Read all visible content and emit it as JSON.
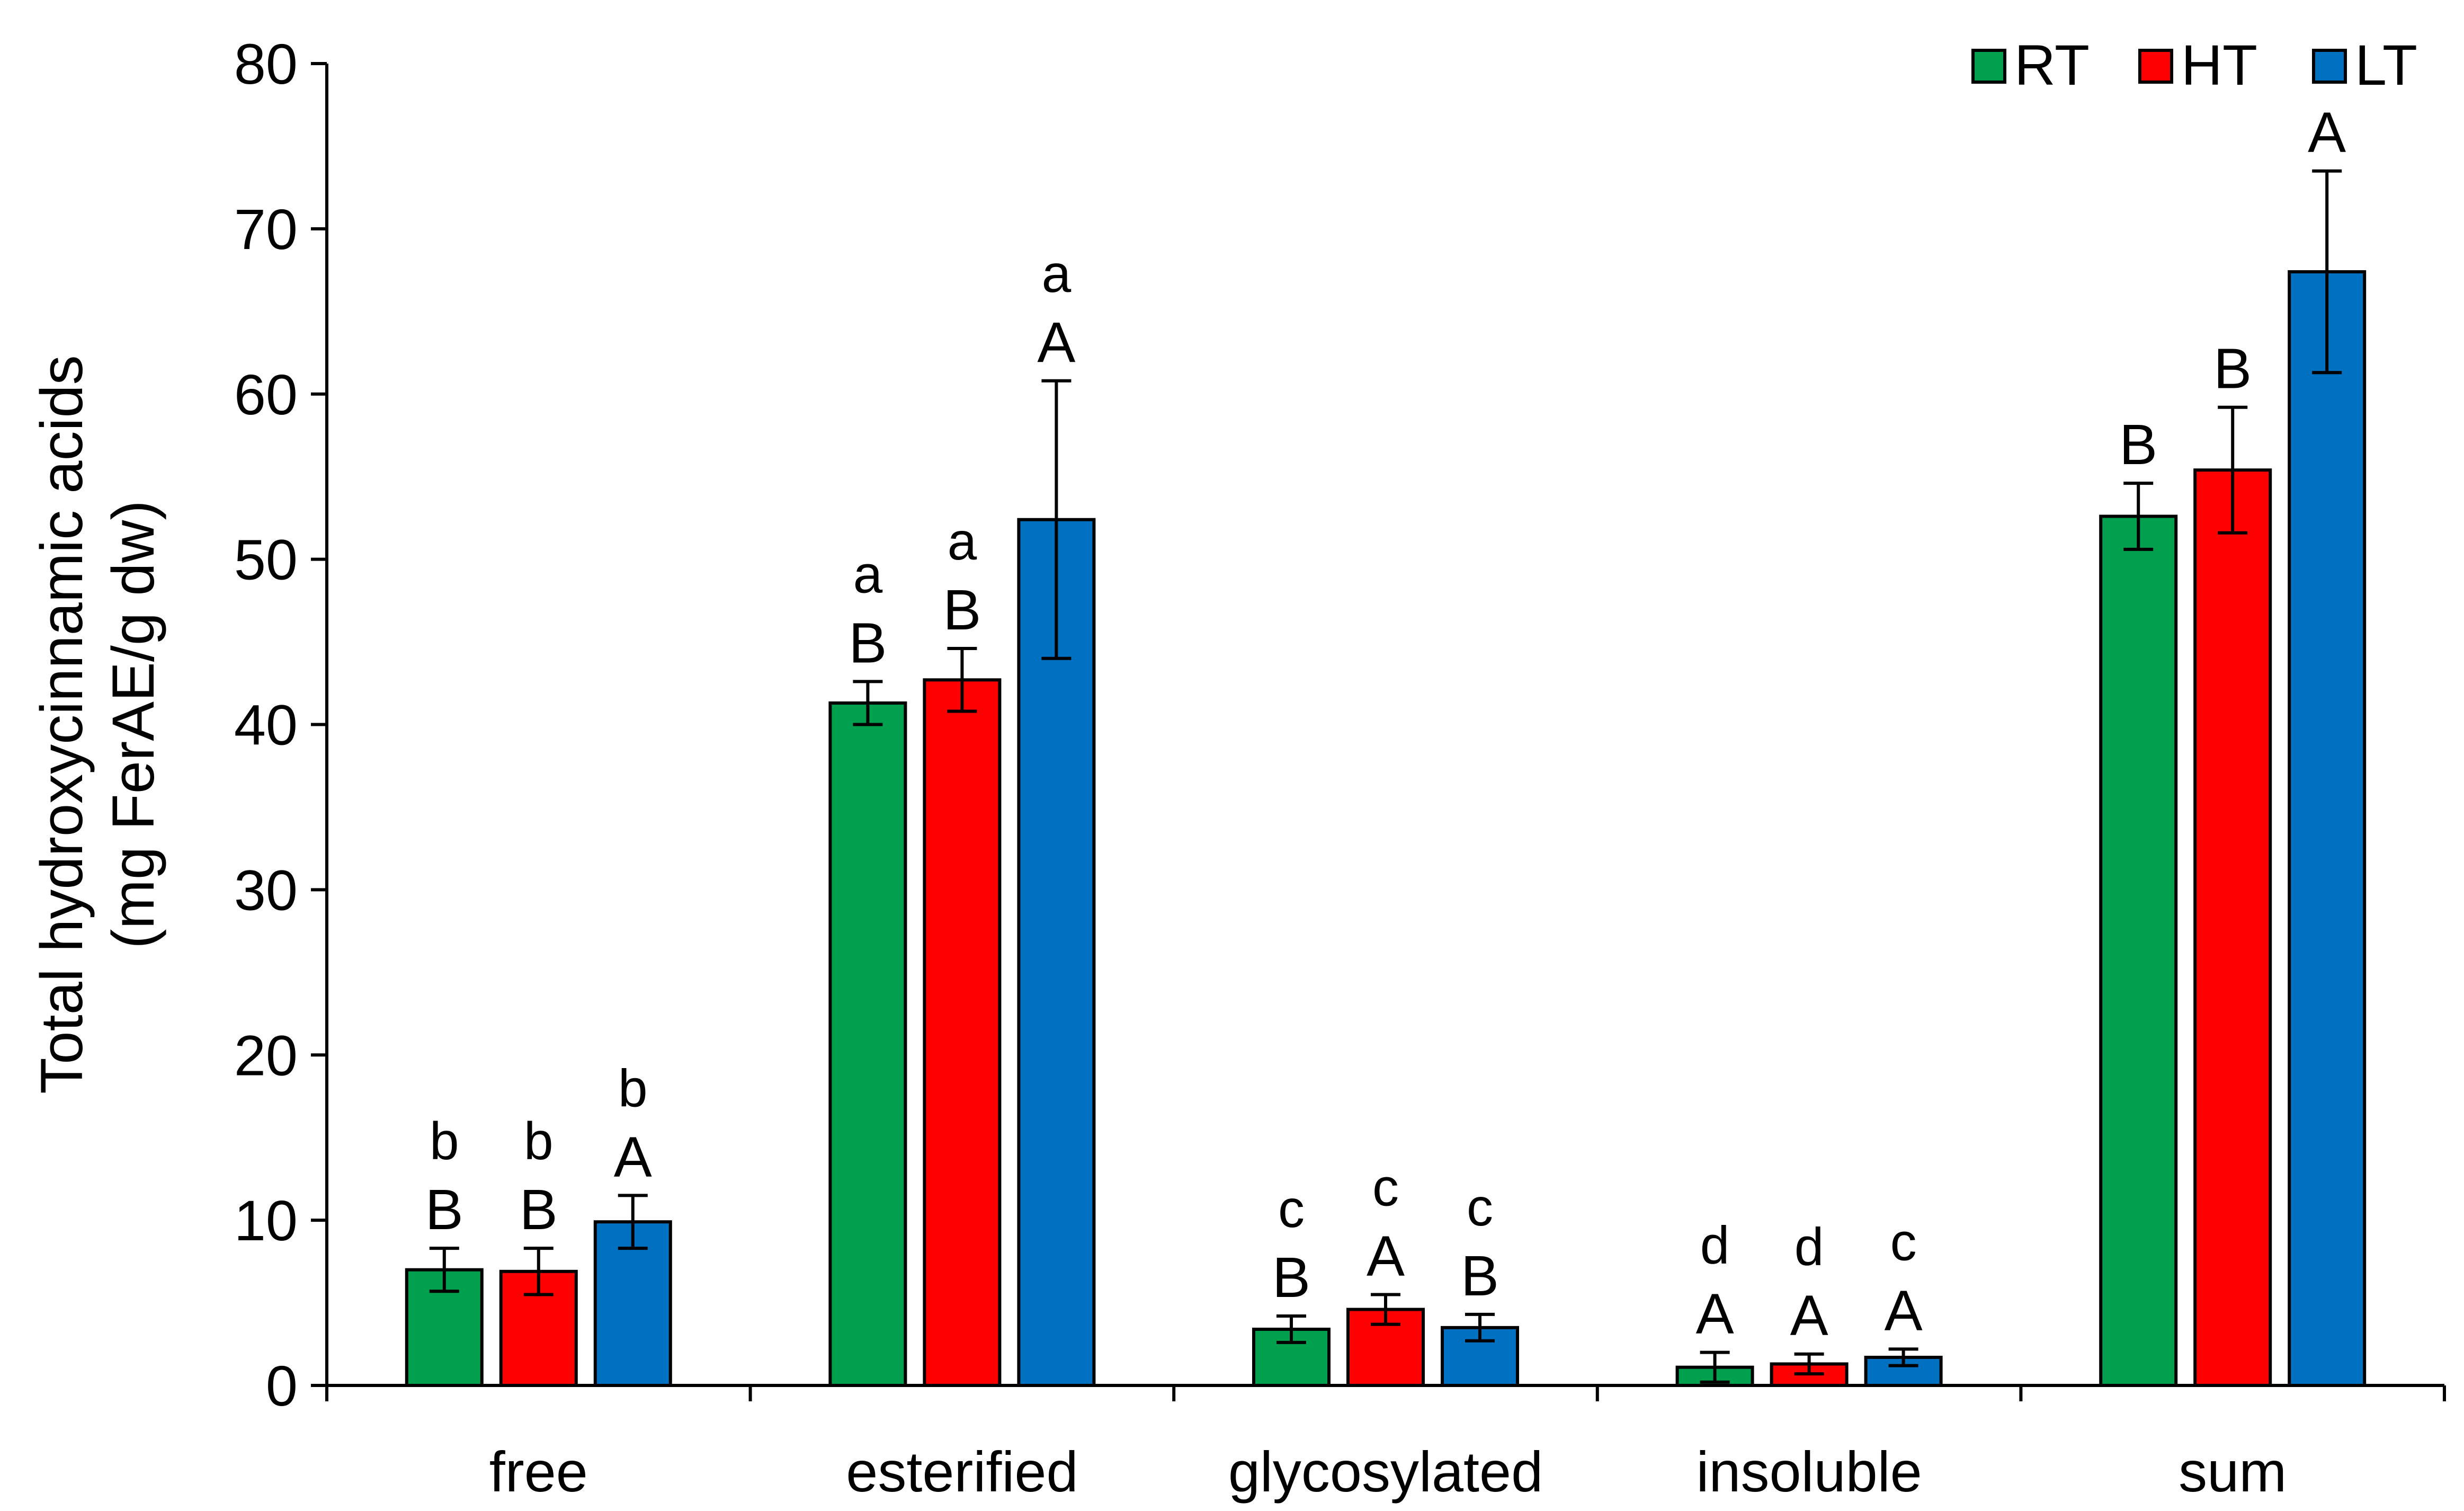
{
  "chart_data": {
    "type": "bar",
    "title": "",
    "ylabel_lines": [
      "Total hydroxycinnamic acids",
      "(mg FerAE/g dw)"
    ],
    "xlabel": "",
    "ylim": [
      0,
      80
    ],
    "yticks": [
      0,
      10,
      20,
      30,
      40,
      50,
      60,
      70,
      80
    ],
    "ytick_labels": [
      "0",
      "10",
      "20",
      "30",
      "40",
      "50",
      "60",
      "70",
      "80"
    ],
    "categories": [
      "free",
      "esterified",
      "glycosylated",
      "insoluble",
      "sum"
    ],
    "legend": {
      "position": "top-right",
      "entries": [
        "RT",
        "HT",
        "LT"
      ]
    },
    "series": [
      {
        "name": "RT",
        "color": "#00A04E",
        "values": [
          7.0,
          41.3,
          3.4,
          1.1,
          52.6
        ],
        "errors": [
          1.3,
          1.3,
          0.8,
          0.9,
          2.0
        ],
        "upper_letters": [
          "b",
          "a",
          "c",
          "d",
          ""
        ],
        "lower_letters": [
          "B",
          "B",
          "B",
          "A",
          "B"
        ]
      },
      {
        "name": "HT",
        "color": "#FF0000",
        "values": [
          6.9,
          42.7,
          4.6,
          1.3,
          55.4
        ],
        "errors": [
          1.4,
          1.9,
          0.9,
          0.6,
          3.8
        ],
        "upper_letters": [
          "b",
          "a",
          "c",
          "d",
          ""
        ],
        "lower_letters": [
          "B",
          "B",
          "A",
          "A",
          "B"
        ]
      },
      {
        "name": "LT",
        "color": "#0070C0",
        "values": [
          9.9,
          52.4,
          3.5,
          1.7,
          67.4
        ],
        "errors": [
          1.6,
          8.4,
          0.8,
          0.5,
          6.1
        ],
        "upper_letters": [
          "b",
          "a",
          "c",
          "c",
          ""
        ],
        "lower_letters": [
          "A",
          "A",
          "B",
          "A",
          "A"
        ]
      }
    ]
  }
}
